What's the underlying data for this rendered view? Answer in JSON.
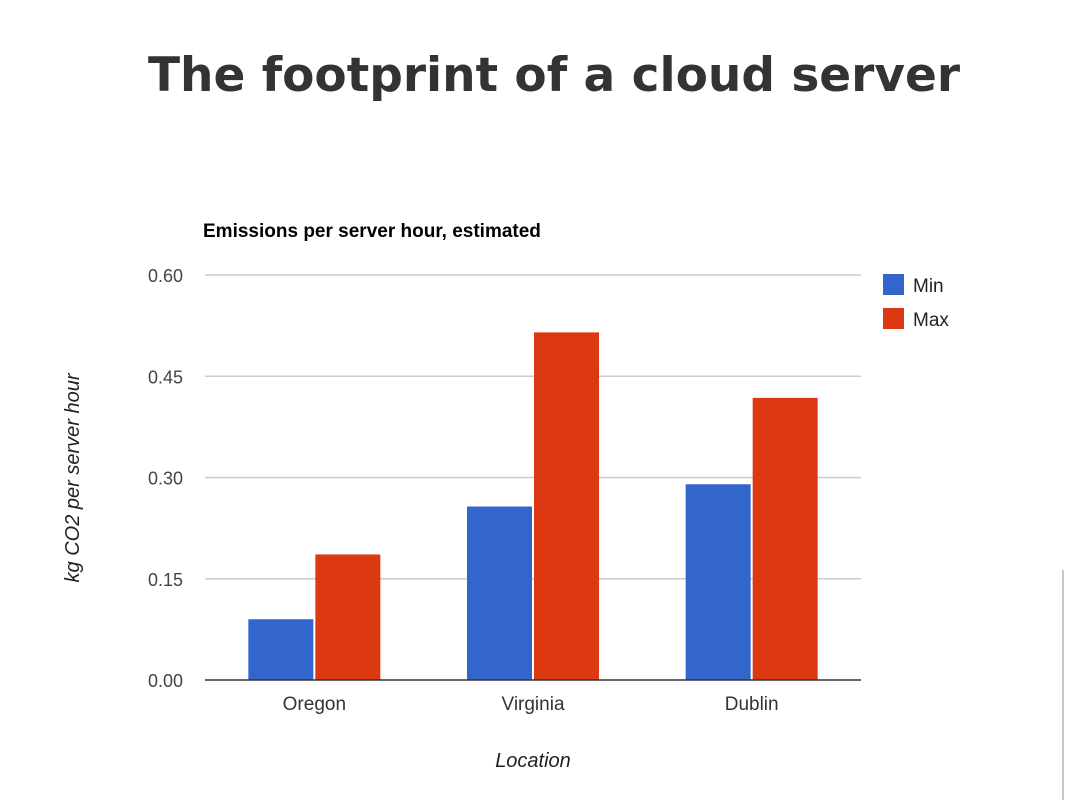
{
  "slide": {
    "title": "The footprint of a cloud server"
  },
  "chart_data": {
    "type": "bar",
    "title": "Emissions per server hour, estimated",
    "xlabel": "Location",
    "ylabel": "kg CO2 per server hour",
    "categories": [
      "Oregon",
      "Virginia",
      "Dublin"
    ],
    "series": [
      {
        "name": "Min",
        "color": "#3366cc",
        "values": [
          0.09,
          0.257,
          0.29
        ]
      },
      {
        "name": "Max",
        "color": "#dc3912",
        "values": [
          0.186,
          0.515,
          0.418
        ]
      }
    ],
    "ylim": [
      0,
      0.6
    ],
    "yticks": [
      "0.00",
      "0.15",
      "0.30",
      "0.45",
      "0.60"
    ],
    "grid": true,
    "legend_position": "right"
  }
}
